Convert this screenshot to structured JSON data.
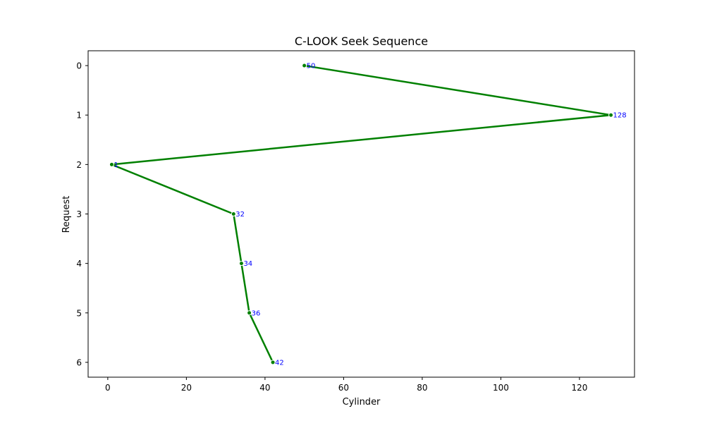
{
  "chart_data": {
    "type": "line",
    "title": "C-LOOK Seek Sequence",
    "xlabel": "Cylinder",
    "ylabel": "Request",
    "xlim": [
      -5,
      134
    ],
    "ylim": [
      6.3,
      -0.3
    ],
    "y_inverted": true,
    "grid": false,
    "x_ticks": [
      0,
      20,
      40,
      60,
      80,
      100,
      120
    ],
    "y_ticks": [
      0,
      1,
      2,
      3,
      4,
      5,
      6
    ],
    "series": [
      {
        "x": [
          50,
          128,
          1,
          32,
          34,
          36,
          42
        ],
        "y": [
          0,
          1,
          2,
          3,
          4,
          5,
          6
        ],
        "point_labels": [
          "50",
          "128",
          "1",
          "32",
          "34",
          "36",
          "42"
        ]
      }
    ],
    "colors": {
      "line": "#008000",
      "labels": "#0000ff",
      "axis": "#000000"
    }
  }
}
